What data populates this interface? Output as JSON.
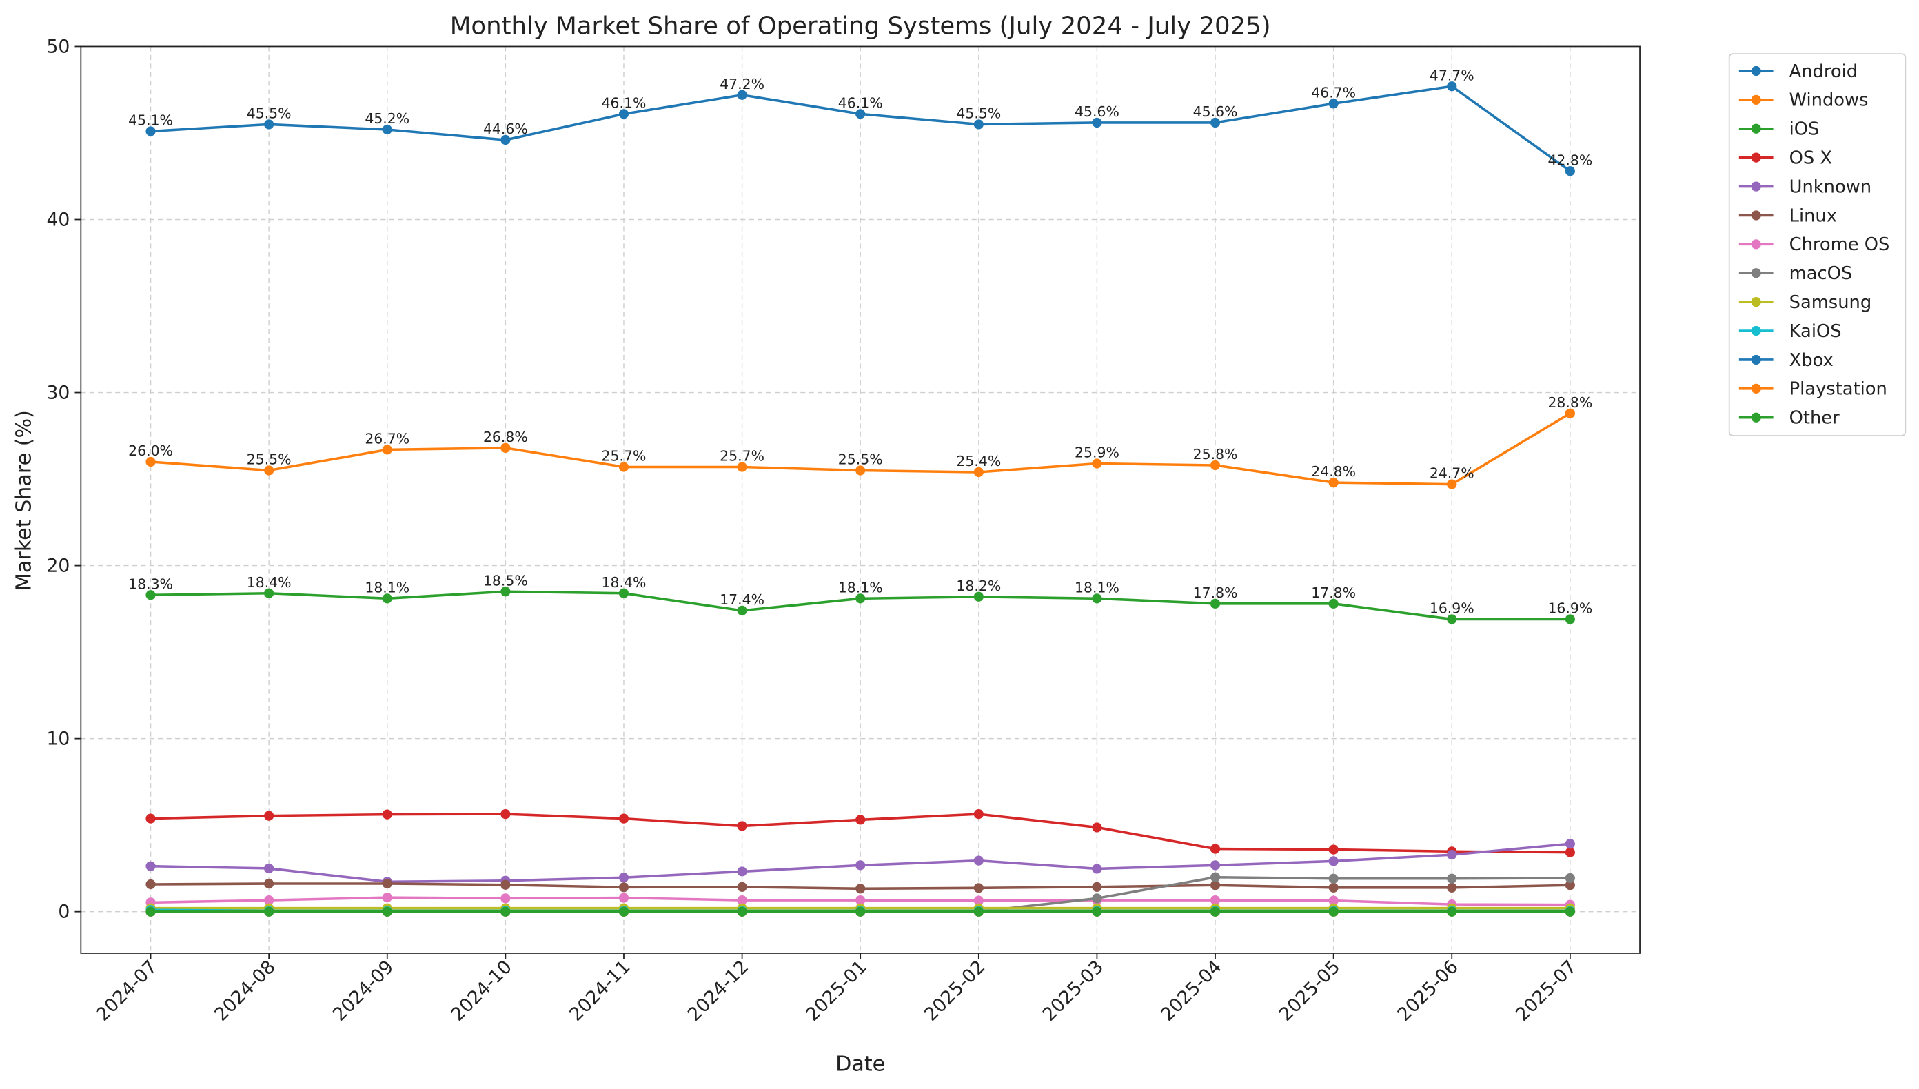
{
  "chart_data": {
    "type": "line",
    "title": "Monthly Market Share of Operating Systems (July 2024 - July 2025)",
    "xlabel": "Date",
    "ylabel": "Market Share (%)",
    "ylim": [
      -2.4,
      50
    ],
    "yticks": [
      0,
      10,
      20,
      30,
      40,
      50
    ],
    "grid": true,
    "legend_position": "outside-top-right",
    "categories": [
      "2024-07",
      "2024-08",
      "2024-09",
      "2024-10",
      "2024-11",
      "2024-12",
      "2025-01",
      "2025-02",
      "2025-03",
      "2025-04",
      "2025-05",
      "2025-06",
      "2025-07"
    ],
    "series": [
      {
        "name": "Android",
        "color": "#1f77b4",
        "labels": true,
        "values": [
          45.1,
          45.5,
          45.2,
          44.6,
          46.1,
          47.2,
          46.1,
          45.5,
          45.6,
          45.6,
          46.7,
          47.7,
          42.8
        ]
      },
      {
        "name": "Windows",
        "color": "#ff7f0e",
        "labels": true,
        "values": [
          26.0,
          25.5,
          26.7,
          26.8,
          25.7,
          25.7,
          25.5,
          25.4,
          25.9,
          25.8,
          24.8,
          24.7,
          28.8
        ]
      },
      {
        "name": "iOS",
        "color": "#2ca02c",
        "labels": true,
        "values": [
          18.3,
          18.4,
          18.1,
          18.5,
          18.4,
          17.4,
          18.1,
          18.2,
          18.1,
          17.8,
          17.8,
          16.9,
          16.9
        ]
      },
      {
        "name": "OS X",
        "color": "#d62728",
        "values": [
          5.38,
          5.54,
          5.62,
          5.64,
          5.38,
          4.95,
          5.31,
          5.64,
          4.87,
          3.63,
          3.59,
          3.48,
          3.43
        ]
      },
      {
        "name": "Unknown",
        "color": "#9467bd",
        "values": [
          2.63,
          2.5,
          1.73,
          1.79,
          1.97,
          2.32,
          2.68,
          2.95,
          2.48,
          2.68,
          2.92,
          3.29,
          3.92
        ]
      },
      {
        "name": "Linux",
        "color": "#8c564b",
        "values": [
          1.58,
          1.62,
          1.62,
          1.55,
          1.41,
          1.43,
          1.33,
          1.37,
          1.43,
          1.53,
          1.39,
          1.39,
          1.53
        ]
      },
      {
        "name": "Chrome OS",
        "color": "#e377c2",
        "values": [
          0.53,
          0.66,
          0.82,
          0.77,
          0.8,
          0.66,
          0.66,
          0.64,
          0.66,
          0.66,
          0.64,
          0.42,
          0.4
        ]
      },
      {
        "name": "macOS",
        "color": "#7f7f7f",
        "values": [
          0,
          0,
          0,
          0,
          0,
          0,
          0,
          0,
          0.77,
          1.99,
          1.91,
          1.91,
          1.94
        ]
      },
      {
        "name": "Samsung",
        "color": "#bcbd22",
        "values": [
          0.2,
          0.2,
          0.2,
          0.2,
          0.2,
          0.2,
          0.2,
          0.2,
          0.2,
          0.2,
          0.2,
          0.2,
          0.2
        ]
      },
      {
        "name": "KaiOS",
        "color": "#17becf",
        "values": [
          0.1,
          0.05,
          0.05,
          0.05,
          0.05,
          0.05,
          0.05,
          0.05,
          0.05,
          0.05,
          0.05,
          0.05,
          0.05
        ]
      },
      {
        "name": "Xbox",
        "color": "#1f77b4",
        "values": [
          0,
          0,
          0,
          0,
          0,
          0,
          0,
          0,
          0,
          0,
          0,
          0,
          0
        ]
      },
      {
        "name": "Playstation",
        "color": "#ff7f0e",
        "values": [
          0,
          0,
          0,
          0,
          0,
          0,
          0,
          0,
          0,
          0,
          0,
          0,
          0
        ]
      },
      {
        "name": "Other",
        "color": "#2ca02c",
        "values": [
          0,
          0,
          0,
          0,
          0,
          0,
          0,
          0,
          0,
          0,
          0,
          0,
          0
        ]
      }
    ]
  }
}
